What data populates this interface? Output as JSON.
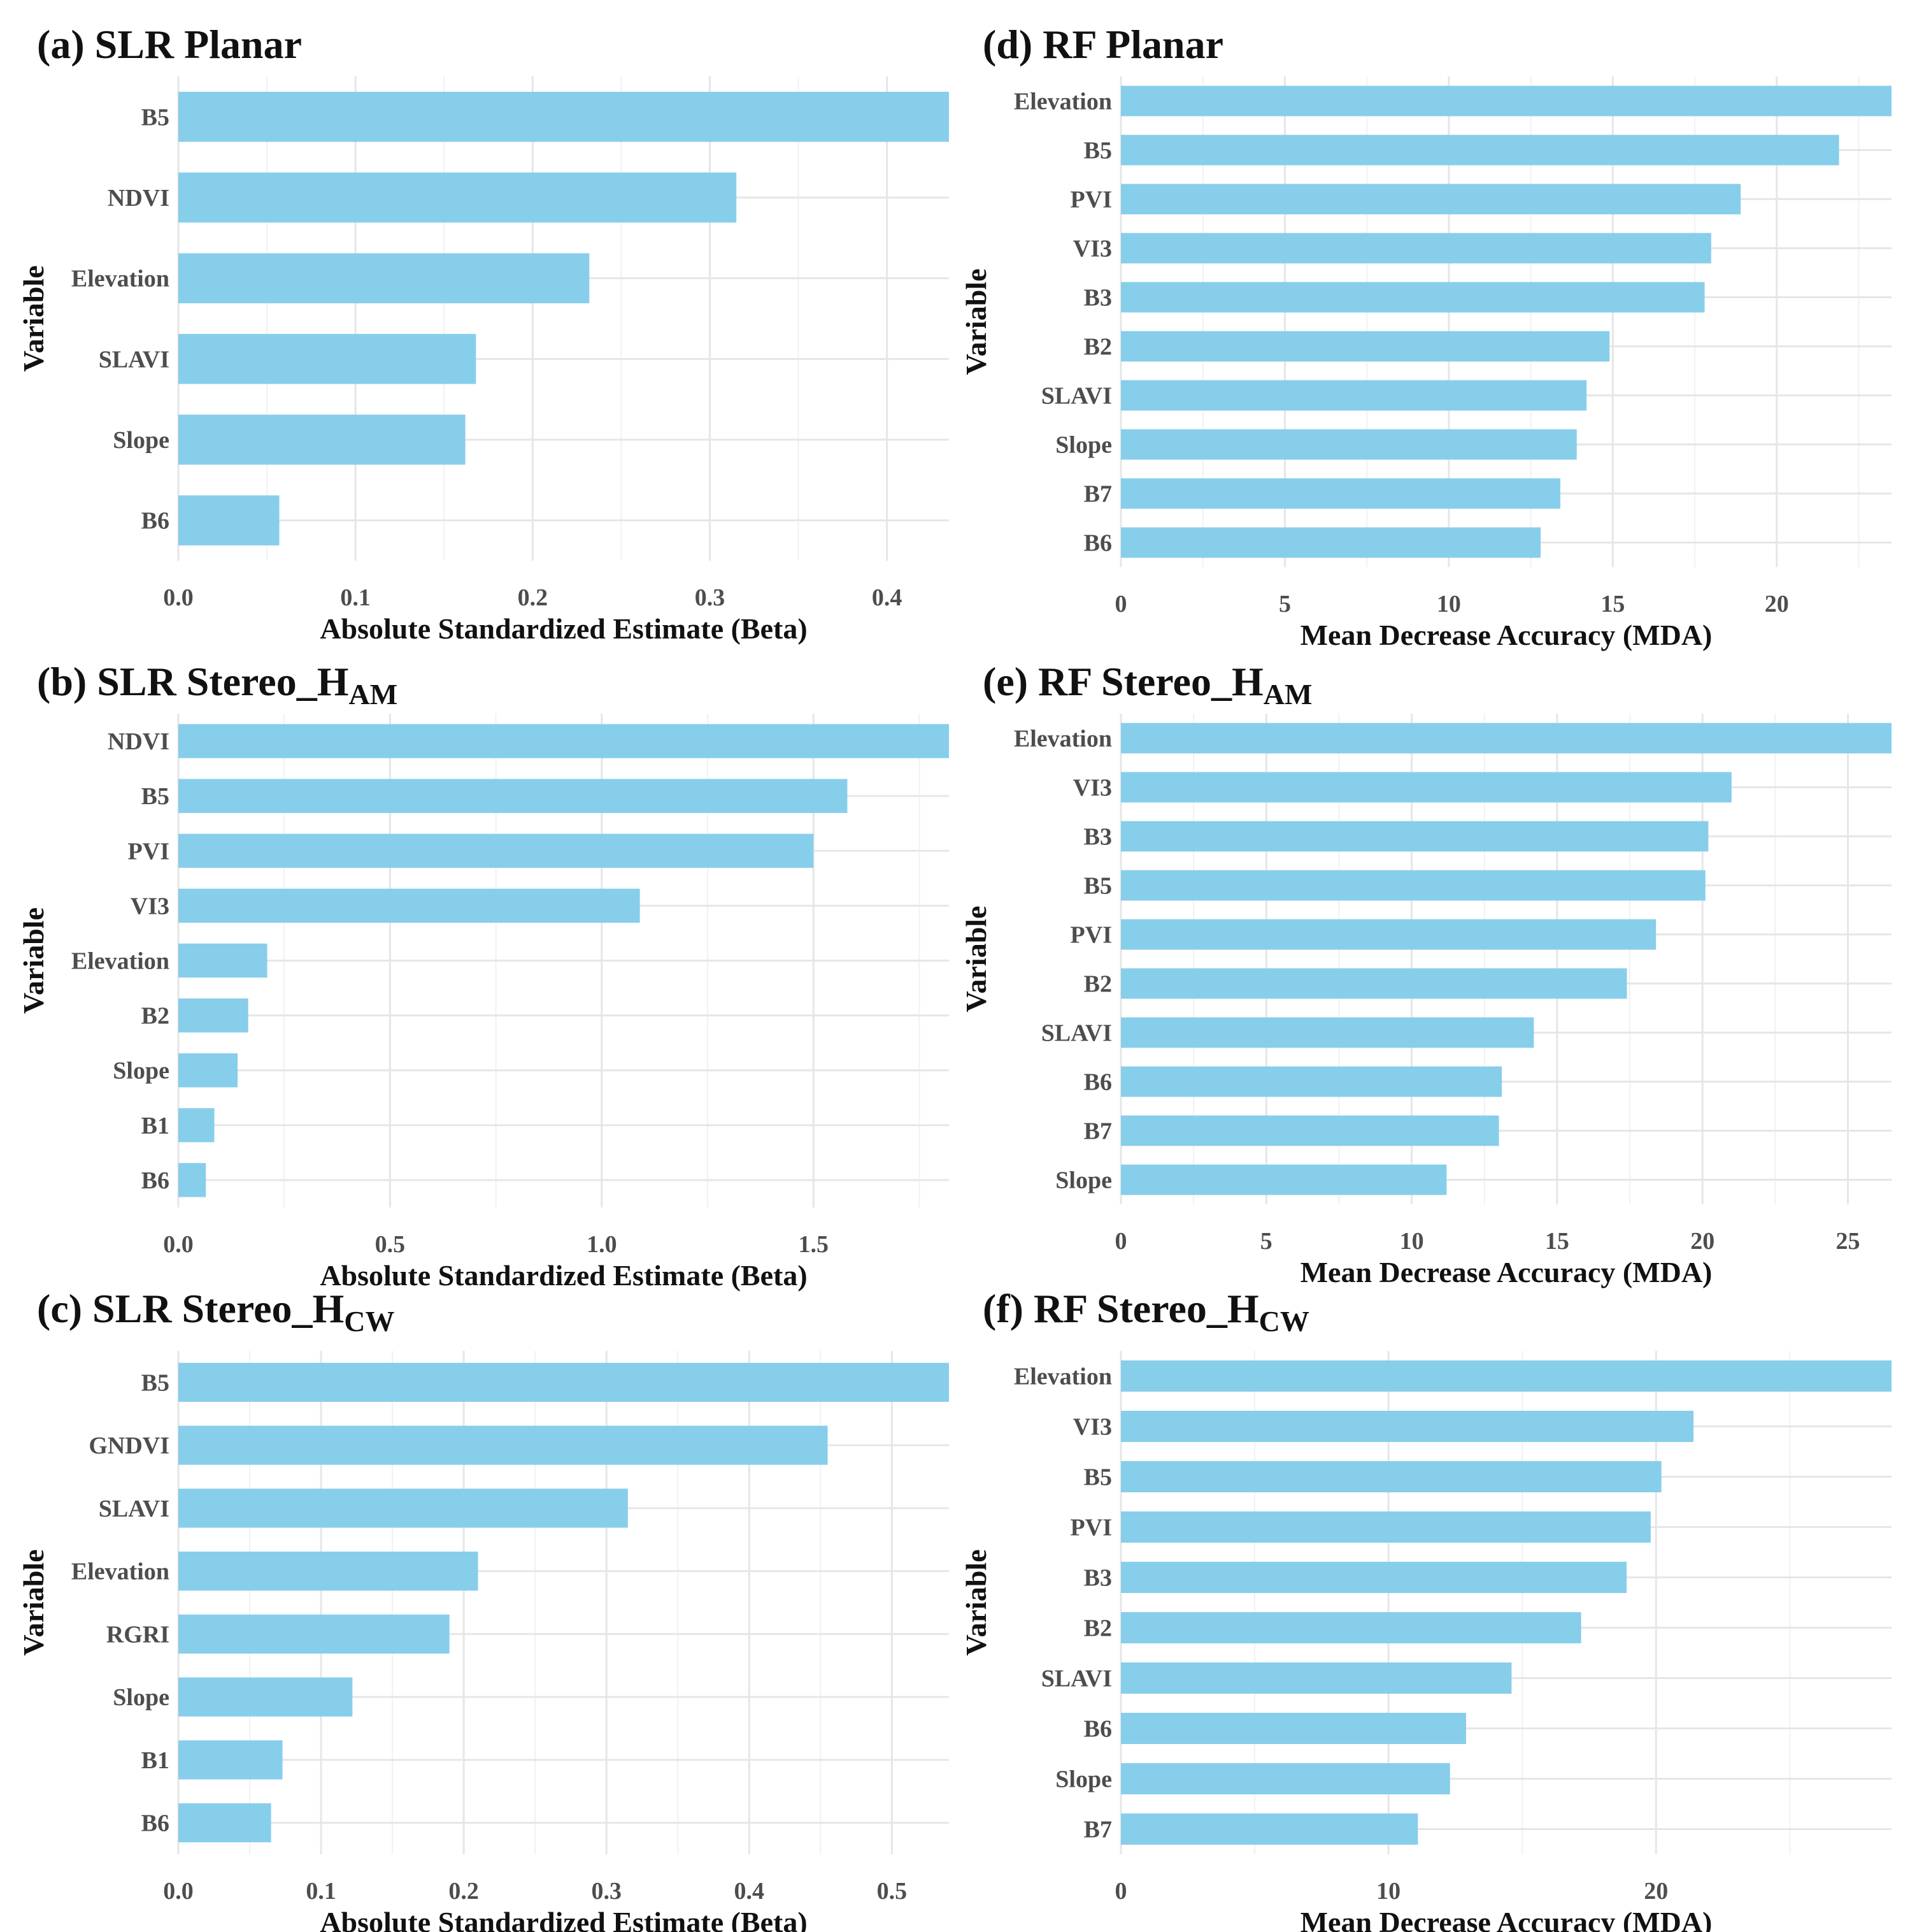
{
  "figure": {
    "panels": [
      {
        "letter": "(a)",
        "name": "SLR Planar",
        "sub": ""
      },
      {
        "letter": "(b)",
        "name": "SLR Stereo_H",
        "sub": "AM"
      },
      {
        "letter": "(c)",
        "name": "SLR Stereo_H",
        "sub": "CW"
      },
      {
        "letter": "(d)",
        "name": "RF Planar",
        "sub": ""
      },
      {
        "letter": "(e)",
        "name": "RF Stereo_H",
        "sub": "AM"
      },
      {
        "letter": "(f)",
        "name": "RF Stereo_H",
        "sub": "CW"
      }
    ]
  },
  "chart_data": [
    {
      "type": "bar",
      "orientation": "horizontal",
      "title": "(a) SLR Planar",
      "xlabel": "Absolute Standardized Estimate (Beta)",
      "ylabel": "Variable",
      "categories": [
        "B5",
        "NDVI",
        "Elevation",
        "SLAVI",
        "Slope",
        "B6"
      ],
      "values": [
        0.435,
        0.315,
        0.232,
        0.168,
        0.162,
        0.057
      ],
      "xlim": [
        0,
        0.435
      ],
      "ticks": [
        0.0,
        0.1,
        0.2,
        0.3,
        0.4
      ],
      "tick_labels": [
        "0.0",
        "0.1",
        "0.2",
        "0.3",
        "0.4"
      ],
      "grid": true,
      "bar_color": "#87CEEB"
    },
    {
      "type": "bar",
      "orientation": "horizontal",
      "title": "(b) SLR Stereo_HAM",
      "xlabel": "Absolute Standardized Estimate (Beta)",
      "ylabel": "Variable",
      "categories": [
        "NDVI",
        "B5",
        "PVI",
        "VI3",
        "Elevation",
        "B2",
        "Slope",
        "B1",
        "B6"
      ],
      "values": [
        1.82,
        1.58,
        1.5,
        1.09,
        0.21,
        0.165,
        0.14,
        0.085,
        0.065
      ],
      "xlim": [
        0,
        1.82
      ],
      "ticks": [
        0.0,
        0.5,
        1.0,
        1.5
      ],
      "tick_labels": [
        "0.0",
        "0.5",
        "1.0",
        "1.5"
      ],
      "grid": true,
      "bar_color": "#87CEEB"
    },
    {
      "type": "bar",
      "orientation": "horizontal",
      "title": "(c) SLR Stereo_HCW",
      "xlabel": "Absolute Standardized Estimate (Beta)",
      "ylabel": "Variable",
      "categories": [
        "B5",
        "GNDVI",
        "SLAVI",
        "Elevation",
        "RGRI",
        "Slope",
        "B1",
        "B6"
      ],
      "values": [
        0.54,
        0.455,
        0.315,
        0.21,
        0.19,
        0.122,
        0.073,
        0.065
      ],
      "xlim": [
        0,
        0.54
      ],
      "ticks": [
        0.0,
        0.1,
        0.2,
        0.3,
        0.4,
        0.5
      ],
      "tick_labels": [
        "0.0",
        "0.1",
        "0.2",
        "0.3",
        "0.4",
        "0.5"
      ],
      "grid": true,
      "bar_color": "#87CEEB"
    },
    {
      "type": "bar",
      "orientation": "horizontal",
      "title": "(d) RF Planar",
      "xlabel": "Mean Decrease Accuracy (MDA)",
      "ylabel": "Variable",
      "categories": [
        "Elevation",
        "B5",
        "PVI",
        "VI3",
        "B3",
        "B2",
        "SLAVI",
        "Slope",
        "B7",
        "B6"
      ],
      "values": [
        23.5,
        21.9,
        18.9,
        18.0,
        17.8,
        14.9,
        14.2,
        13.9,
        13.4,
        12.8
      ],
      "xlim": [
        0,
        23.5
      ],
      "ticks": [
        0,
        5,
        10,
        15,
        20
      ],
      "tick_labels": [
        "0",
        "5",
        "10",
        "15",
        "20"
      ],
      "grid": true,
      "bar_color": "#87CEEB"
    },
    {
      "type": "bar",
      "orientation": "horizontal",
      "title": "(e) RF Stereo_HAM",
      "xlabel": "Mean Decrease Accuracy (MDA)",
      "ylabel": "Variable",
      "categories": [
        "Elevation",
        "VI3",
        "B3",
        "B5",
        "PVI",
        "B2",
        "SLAVI",
        "B6",
        "B7",
        "Slope"
      ],
      "values": [
        26.5,
        21.0,
        20.2,
        20.1,
        18.4,
        17.4,
        14.2,
        13.1,
        13.0,
        11.2
      ],
      "xlim": [
        0,
        26.5
      ],
      "ticks": [
        0,
        5,
        10,
        15,
        20,
        25
      ],
      "tick_labels": [
        "0",
        "5",
        "10",
        "15",
        "20",
        "25"
      ],
      "grid": true,
      "bar_color": "#87CEEB"
    },
    {
      "type": "bar",
      "orientation": "horizontal",
      "title": "(f) RF Stereo_HCW",
      "xlabel": "Mean Decrease Accuracy (MDA)",
      "ylabel": "Variable",
      "categories": [
        "Elevation",
        "VI3",
        "B5",
        "PVI",
        "B3",
        "B2",
        "SLAVI",
        "B6",
        "Slope",
        "B7"
      ],
      "values": [
        28.8,
        21.4,
        20.2,
        19.8,
        18.9,
        17.2,
        14.6,
        12.9,
        12.3,
        11.1
      ],
      "xlim": [
        0,
        28.8
      ],
      "ticks": [
        0,
        10,
        20
      ],
      "tick_labels": [
        "0",
        "10",
        "20"
      ],
      "grid": true,
      "bar_color": "#87CEEB"
    }
  ]
}
